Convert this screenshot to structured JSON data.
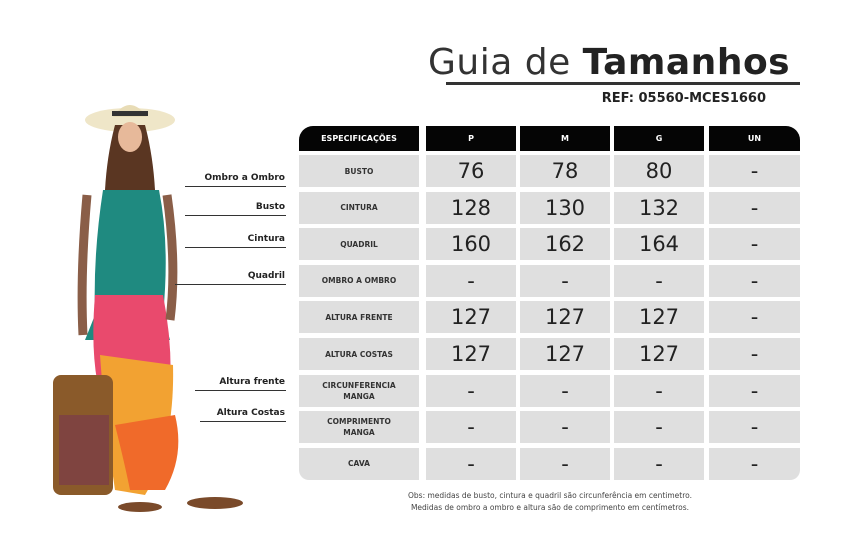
{
  "title": {
    "light": "Guia de",
    "bold": "Tamanhos"
  },
  "ref": "REF: 05560-MCES1660",
  "table": {
    "headers": [
      "ESPECIFICAÇÕES",
      "P",
      "M",
      "G",
      "UN"
    ],
    "rows": [
      {
        "label": "BUSTO",
        "values": [
          "76",
          "78",
          "80",
          "-"
        ]
      },
      {
        "label": "CINTURA",
        "values": [
          "128",
          "130",
          "132",
          "-"
        ]
      },
      {
        "label": "QUADRIL",
        "values": [
          "160",
          "162",
          "164",
          "-"
        ]
      },
      {
        "label": "OMBRO A OMBRO",
        "values": [
          "-",
          "-",
          "-",
          "-"
        ]
      },
      {
        "label": "ALTURA FRENTE",
        "values": [
          "127",
          "127",
          "127",
          "-"
        ]
      },
      {
        "label": "ALTURA COSTAS",
        "values": [
          "127",
          "127",
          "127",
          "-"
        ]
      },
      {
        "label": "CIRCUNFERENCIA MANGA",
        "values": [
          "-",
          "-",
          "-",
          "-"
        ]
      },
      {
        "label": "COMPRIMENTO MANGA",
        "values": [
          "-",
          "-",
          "-",
          "-"
        ]
      },
      {
        "label": "CAVA",
        "values": [
          "-",
          "-",
          "-",
          "-"
        ]
      }
    ]
  },
  "measure_labels": [
    "Ombro a Ombro",
    "Busto",
    "Cintura",
    "Quadril",
    "Altura frente",
    "Altura Costas"
  ],
  "note": [
    "Obs: medidas de busto, cintura e quadril são circunferência em centimetro.",
    "Medidas de ombro a ombro e altura são de comprimento em centímetros."
  ]
}
